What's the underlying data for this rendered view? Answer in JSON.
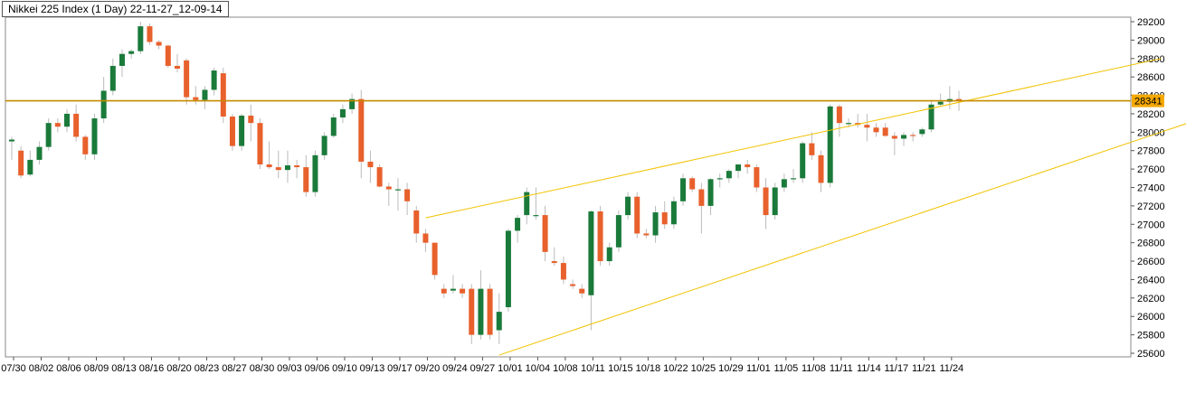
{
  "chart_data": {
    "type": "candlestick",
    "title": "Nikkei 225 Index (1 Day) 22-11-27_12-09-14",
    "ylim": [
      25600,
      29200
    ],
    "y_ticks": [
      25600,
      25800,
      26000,
      26200,
      26400,
      26600,
      26800,
      27000,
      27200,
      27400,
      27600,
      27800,
      28000,
      28200,
      28400,
      28600,
      28800,
      29000,
      29200
    ],
    "x_tick_labels": [
      "07/30",
      "08/02",
      "08/06",
      "08/09",
      "08/13",
      "08/16",
      "08/20",
      "08/23",
      "08/27",
      "08/30",
      "09/03",
      "09/06",
      "09/10",
      "09/13",
      "09/17",
      "09/20",
      "09/24",
      "09/27",
      "10/01",
      "10/04",
      "10/08",
      "10/11",
      "10/15",
      "10/18",
      "10/22",
      "10/25",
      "10/29",
      "11/01",
      "11/05",
      "11/08",
      "11/11",
      "11/14",
      "11/17",
      "11/21",
      "11/24"
    ],
    "last_price": 28341,
    "horizontal_level": 28341,
    "colors": {
      "up": "#1a7a3a",
      "down": "#e8602c",
      "wick": "#bbbbbb",
      "level": "#c68a00",
      "trend": "#f2c200",
      "label_bg": "#f5a800"
    },
    "candles": [
      {
        "o": 27900,
        "h": 27950,
        "l": 27700,
        "c": 27920
      },
      {
        "o": 27800,
        "h": 27850,
        "l": 27500,
        "c": 27530
      },
      {
        "o": 27540,
        "h": 27800,
        "l": 27520,
        "c": 27700
      },
      {
        "o": 27700,
        "h": 27900,
        "l": 27650,
        "c": 27840
      },
      {
        "o": 27840,
        "h": 28150,
        "l": 27800,
        "c": 28100
      },
      {
        "o": 28100,
        "h": 28150,
        "l": 28000,
        "c": 28060
      },
      {
        "o": 28060,
        "h": 28250,
        "l": 28000,
        "c": 28200
      },
      {
        "o": 28200,
        "h": 28300,
        "l": 27900,
        "c": 27950
      },
      {
        "o": 27950,
        "h": 27970,
        "l": 27700,
        "c": 27760
      },
      {
        "o": 27760,
        "h": 28200,
        "l": 27700,
        "c": 28150
      },
      {
        "o": 28150,
        "h": 28600,
        "l": 28100,
        "c": 28450
      },
      {
        "o": 28450,
        "h": 28800,
        "l": 28400,
        "c": 28720
      },
      {
        "o": 28720,
        "h": 28900,
        "l": 28600,
        "c": 28850
      },
      {
        "o": 28850,
        "h": 28900,
        "l": 28800,
        "c": 28880
      },
      {
        "o": 28880,
        "h": 29200,
        "l": 28850,
        "c": 29150
      },
      {
        "o": 29150,
        "h": 29180,
        "l": 28950,
        "c": 28980
      },
      {
        "o": 28980,
        "h": 29000,
        "l": 28900,
        "c": 28940
      },
      {
        "o": 28940,
        "h": 28950,
        "l": 28700,
        "c": 28720
      },
      {
        "o": 28720,
        "h": 28850,
        "l": 28650,
        "c": 28690
      },
      {
        "o": 28780,
        "h": 28800,
        "l": 28300,
        "c": 28380
      },
      {
        "o": 28380,
        "h": 28500,
        "l": 28300,
        "c": 28350
      },
      {
        "o": 28350,
        "h": 28500,
        "l": 28250,
        "c": 28460
      },
      {
        "o": 28460,
        "h": 28700,
        "l": 28400,
        "c": 28670
      },
      {
        "o": 28640,
        "h": 28700,
        "l": 28100,
        "c": 28170
      },
      {
        "o": 28170,
        "h": 28200,
        "l": 27800,
        "c": 27850
      },
      {
        "o": 27850,
        "h": 28200,
        "l": 27800,
        "c": 28180
      },
      {
        "o": 28180,
        "h": 28300,
        "l": 27900,
        "c": 28100
      },
      {
        "o": 28100,
        "h": 28150,
        "l": 27600,
        "c": 27650
      },
      {
        "o": 27650,
        "h": 27900,
        "l": 27600,
        "c": 27620
      },
      {
        "o": 27620,
        "h": 27800,
        "l": 27500,
        "c": 27590
      },
      {
        "o": 27590,
        "h": 27800,
        "l": 27450,
        "c": 27640
      },
      {
        "o": 27640,
        "h": 27700,
        "l": 27500,
        "c": 27620
      },
      {
        "o": 27620,
        "h": 27750,
        "l": 27300,
        "c": 27350
      },
      {
        "o": 27350,
        "h": 27800,
        "l": 27300,
        "c": 27750
      },
      {
        "o": 27750,
        "h": 28000,
        "l": 27700,
        "c": 27960
      },
      {
        "o": 27960,
        "h": 28200,
        "l": 27940,
        "c": 28160
      },
      {
        "o": 28160,
        "h": 28300,
        "l": 28100,
        "c": 28250
      },
      {
        "o": 28250,
        "h": 28420,
        "l": 28200,
        "c": 28360
      },
      {
        "o": 28360,
        "h": 28460,
        "l": 27500,
        "c": 27680
      },
      {
        "o": 27680,
        "h": 27800,
        "l": 27450,
        "c": 27620
      },
      {
        "o": 27620,
        "h": 27650,
        "l": 27400,
        "c": 27410
      },
      {
        "o": 27410,
        "h": 27450,
        "l": 27200,
        "c": 27380
      },
      {
        "o": 27380,
        "h": 27500,
        "l": 27150,
        "c": 27380
      },
      {
        "o": 27380,
        "h": 27450,
        "l": 27100,
        "c": 27250
      },
      {
        "o": 27150,
        "h": 27200,
        "l": 26800,
        "c": 26900
      },
      {
        "o": 26900,
        "h": 26950,
        "l": 26700,
        "c": 26800
      },
      {
        "o": 26800,
        "h": 26800,
        "l": 26400,
        "c": 26450
      },
      {
        "o": 26300,
        "h": 26350,
        "l": 26200,
        "c": 26250
      },
      {
        "o": 26280,
        "h": 26450,
        "l": 26250,
        "c": 26300
      },
      {
        "o": 26300,
        "h": 26350,
        "l": 26200,
        "c": 26250
      },
      {
        "o": 26300,
        "h": 26350,
        "l": 25700,
        "c": 25800
      },
      {
        "o": 25800,
        "h": 26500,
        "l": 25750,
        "c": 26300
      },
      {
        "o": 26300,
        "h": 26350,
        "l": 25750,
        "c": 25800
      },
      {
        "o": 25850,
        "h": 26250,
        "l": 25700,
        "c": 26050
      },
      {
        "o": 26100,
        "h": 26950,
        "l": 26050,
        "c": 26930
      },
      {
        "o": 26930,
        "h": 27100,
        "l": 26800,
        "c": 27070
      },
      {
        "o": 27100,
        "h": 27400,
        "l": 27000,
        "c": 27350
      },
      {
        "o": 27100,
        "h": 27400,
        "l": 27050,
        "c": 27100
      },
      {
        "o": 27100,
        "h": 27200,
        "l": 26600,
        "c": 26700
      },
      {
        "o": 26600,
        "h": 26750,
        "l": 26550,
        "c": 26580
      },
      {
        "o": 26580,
        "h": 26650,
        "l": 26350,
        "c": 26400
      },
      {
        "o": 26350,
        "h": 26400,
        "l": 26300,
        "c": 26330
      },
      {
        "o": 26300,
        "h": 26350,
        "l": 26200,
        "c": 26250
      },
      {
        "o": 26230,
        "h": 27150,
        "l": 25850,
        "c": 27140
      },
      {
        "o": 27140,
        "h": 27200,
        "l": 26550,
        "c": 26600
      },
      {
        "o": 26600,
        "h": 26800,
        "l": 26550,
        "c": 26750
      },
      {
        "o": 26750,
        "h": 27150,
        "l": 26700,
        "c": 27100
      },
      {
        "o": 27100,
        "h": 27350,
        "l": 27050,
        "c": 27300
      },
      {
        "o": 27300,
        "h": 27350,
        "l": 26850,
        "c": 26900
      },
      {
        "o": 26900,
        "h": 26950,
        "l": 26850,
        "c": 26880
      },
      {
        "o": 26880,
        "h": 27200,
        "l": 26800,
        "c": 27130
      },
      {
        "o": 27130,
        "h": 27250,
        "l": 26950,
        "c": 27000
      },
      {
        "o": 27000,
        "h": 27300,
        "l": 26950,
        "c": 27250
      },
      {
        "o": 27250,
        "h": 27550,
        "l": 27200,
        "c": 27500
      },
      {
        "o": 27500,
        "h": 27520,
        "l": 27350,
        "c": 27380
      },
      {
        "o": 27380,
        "h": 27450,
        "l": 26900,
        "c": 27200
      },
      {
        "o": 27200,
        "h": 27500,
        "l": 27100,
        "c": 27490
      },
      {
        "o": 27490,
        "h": 27550,
        "l": 27400,
        "c": 27500
      },
      {
        "o": 27500,
        "h": 27600,
        "l": 27450,
        "c": 27580
      },
      {
        "o": 27580,
        "h": 27650,
        "l": 27500,
        "c": 27650
      },
      {
        "o": 27650,
        "h": 27700,
        "l": 27550,
        "c": 27620
      },
      {
        "o": 27620,
        "h": 27650,
        "l": 27350,
        "c": 27400
      },
      {
        "o": 27400,
        "h": 27500,
        "l": 26950,
        "c": 27100
      },
      {
        "o": 27100,
        "h": 27450,
        "l": 27050,
        "c": 27400
      },
      {
        "o": 27400,
        "h": 27550,
        "l": 27350,
        "c": 27490
      },
      {
        "o": 27490,
        "h": 27600,
        "l": 27450,
        "c": 27500
      },
      {
        "o": 27500,
        "h": 27900,
        "l": 27450,
        "c": 27880
      },
      {
        "o": 27880,
        "h": 28000,
        "l": 27700,
        "c": 27750
      },
      {
        "o": 27750,
        "h": 27800,
        "l": 27350,
        "c": 27450
      },
      {
        "o": 27450,
        "h": 28300,
        "l": 27400,
        "c": 28280
      },
      {
        "o": 28280,
        "h": 28300,
        "l": 27950,
        "c": 28100
      },
      {
        "o": 28100,
        "h": 28150,
        "l": 28050,
        "c": 28100
      },
      {
        "o": 28100,
        "h": 28200,
        "l": 28050,
        "c": 28080
      },
      {
        "o": 28080,
        "h": 28200,
        "l": 27900,
        "c": 28050
      },
      {
        "o": 28050,
        "h": 28100,
        "l": 27950,
        "c": 28000
      },
      {
        "o": 28050,
        "h": 28100,
        "l": 27950,
        "c": 27960
      },
      {
        "o": 27960,
        "h": 28000,
        "l": 27750,
        "c": 27930
      },
      {
        "o": 27930,
        "h": 28000,
        "l": 27850,
        "c": 27970
      },
      {
        "o": 27970,
        "h": 28000,
        "l": 27900,
        "c": 27960
      },
      {
        "o": 27980,
        "h": 28050,
        "l": 27950,
        "c": 28030
      },
      {
        "o": 28030,
        "h": 28350,
        "l": 28000,
        "c": 28300
      },
      {
        "o": 28300,
        "h": 28420,
        "l": 28280,
        "c": 28330
      },
      {
        "o": 28330,
        "h": 28500,
        "l": 28250,
        "c": 28360
      },
      {
        "o": 28360,
        "h": 28450,
        "l": 28230,
        "c": 28341
      }
    ],
    "trendlines": [
      {
        "from": {
          "candle": 45,
          "price": 27070
        },
        "to": {
          "candle": 125,
          "price": 28800
        }
      },
      {
        "from": {
          "candle": 53,
          "price": 25580
        },
        "to": {
          "candle": 130,
          "price": 28170
        }
      }
    ]
  }
}
